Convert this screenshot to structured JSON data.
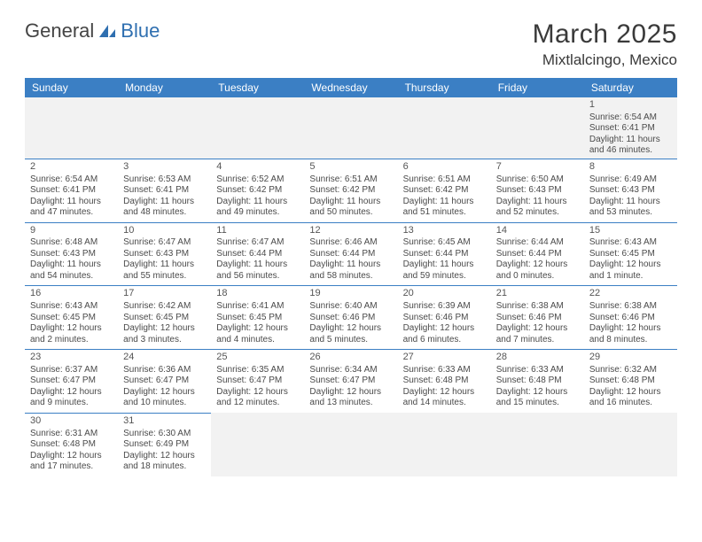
{
  "logo": {
    "part1": "General",
    "part2": "Blue"
  },
  "title": "March 2025",
  "subtitle": "Mixtlalcingo, Mexico",
  "colors": {
    "header_bg": "#3b7fc4",
    "header_text": "#ffffff",
    "border": "#3b7fc4",
    "text": "#4a4a4a",
    "empty_bg": "#f2f2f2"
  },
  "weekdays": [
    "Sunday",
    "Monday",
    "Tuesday",
    "Wednesday",
    "Thursday",
    "Friday",
    "Saturday"
  ],
  "weeks": [
    [
      null,
      null,
      null,
      null,
      null,
      null,
      {
        "d": "1",
        "sr": "Sunrise: 6:54 AM",
        "ss": "Sunset: 6:41 PM",
        "dl1": "Daylight: 11 hours",
        "dl2": "and 46 minutes."
      }
    ],
    [
      {
        "d": "2",
        "sr": "Sunrise: 6:54 AM",
        "ss": "Sunset: 6:41 PM",
        "dl1": "Daylight: 11 hours",
        "dl2": "and 47 minutes."
      },
      {
        "d": "3",
        "sr": "Sunrise: 6:53 AM",
        "ss": "Sunset: 6:41 PM",
        "dl1": "Daylight: 11 hours",
        "dl2": "and 48 minutes."
      },
      {
        "d": "4",
        "sr": "Sunrise: 6:52 AM",
        "ss": "Sunset: 6:42 PM",
        "dl1": "Daylight: 11 hours",
        "dl2": "and 49 minutes."
      },
      {
        "d": "5",
        "sr": "Sunrise: 6:51 AM",
        "ss": "Sunset: 6:42 PM",
        "dl1": "Daylight: 11 hours",
        "dl2": "and 50 minutes."
      },
      {
        "d": "6",
        "sr": "Sunrise: 6:51 AM",
        "ss": "Sunset: 6:42 PM",
        "dl1": "Daylight: 11 hours",
        "dl2": "and 51 minutes."
      },
      {
        "d": "7",
        "sr": "Sunrise: 6:50 AM",
        "ss": "Sunset: 6:43 PM",
        "dl1": "Daylight: 11 hours",
        "dl2": "and 52 minutes."
      },
      {
        "d": "8",
        "sr": "Sunrise: 6:49 AM",
        "ss": "Sunset: 6:43 PM",
        "dl1": "Daylight: 11 hours",
        "dl2": "and 53 minutes."
      }
    ],
    [
      {
        "d": "9",
        "sr": "Sunrise: 6:48 AM",
        "ss": "Sunset: 6:43 PM",
        "dl1": "Daylight: 11 hours",
        "dl2": "and 54 minutes."
      },
      {
        "d": "10",
        "sr": "Sunrise: 6:47 AM",
        "ss": "Sunset: 6:43 PM",
        "dl1": "Daylight: 11 hours",
        "dl2": "and 55 minutes."
      },
      {
        "d": "11",
        "sr": "Sunrise: 6:47 AM",
        "ss": "Sunset: 6:44 PM",
        "dl1": "Daylight: 11 hours",
        "dl2": "and 56 minutes."
      },
      {
        "d": "12",
        "sr": "Sunrise: 6:46 AM",
        "ss": "Sunset: 6:44 PM",
        "dl1": "Daylight: 11 hours",
        "dl2": "and 58 minutes."
      },
      {
        "d": "13",
        "sr": "Sunrise: 6:45 AM",
        "ss": "Sunset: 6:44 PM",
        "dl1": "Daylight: 11 hours",
        "dl2": "and 59 minutes."
      },
      {
        "d": "14",
        "sr": "Sunrise: 6:44 AM",
        "ss": "Sunset: 6:44 PM",
        "dl1": "Daylight: 12 hours",
        "dl2": "and 0 minutes."
      },
      {
        "d": "15",
        "sr": "Sunrise: 6:43 AM",
        "ss": "Sunset: 6:45 PM",
        "dl1": "Daylight: 12 hours",
        "dl2": "and 1 minute."
      }
    ],
    [
      {
        "d": "16",
        "sr": "Sunrise: 6:43 AM",
        "ss": "Sunset: 6:45 PM",
        "dl1": "Daylight: 12 hours",
        "dl2": "and 2 minutes."
      },
      {
        "d": "17",
        "sr": "Sunrise: 6:42 AM",
        "ss": "Sunset: 6:45 PM",
        "dl1": "Daylight: 12 hours",
        "dl2": "and 3 minutes."
      },
      {
        "d": "18",
        "sr": "Sunrise: 6:41 AM",
        "ss": "Sunset: 6:45 PM",
        "dl1": "Daylight: 12 hours",
        "dl2": "and 4 minutes."
      },
      {
        "d": "19",
        "sr": "Sunrise: 6:40 AM",
        "ss": "Sunset: 6:46 PM",
        "dl1": "Daylight: 12 hours",
        "dl2": "and 5 minutes."
      },
      {
        "d": "20",
        "sr": "Sunrise: 6:39 AM",
        "ss": "Sunset: 6:46 PM",
        "dl1": "Daylight: 12 hours",
        "dl2": "and 6 minutes."
      },
      {
        "d": "21",
        "sr": "Sunrise: 6:38 AM",
        "ss": "Sunset: 6:46 PM",
        "dl1": "Daylight: 12 hours",
        "dl2": "and 7 minutes."
      },
      {
        "d": "22",
        "sr": "Sunrise: 6:38 AM",
        "ss": "Sunset: 6:46 PM",
        "dl1": "Daylight: 12 hours",
        "dl2": "and 8 minutes."
      }
    ],
    [
      {
        "d": "23",
        "sr": "Sunrise: 6:37 AM",
        "ss": "Sunset: 6:47 PM",
        "dl1": "Daylight: 12 hours",
        "dl2": "and 9 minutes."
      },
      {
        "d": "24",
        "sr": "Sunrise: 6:36 AM",
        "ss": "Sunset: 6:47 PM",
        "dl1": "Daylight: 12 hours",
        "dl2": "and 10 minutes."
      },
      {
        "d": "25",
        "sr": "Sunrise: 6:35 AM",
        "ss": "Sunset: 6:47 PM",
        "dl1": "Daylight: 12 hours",
        "dl2": "and 12 minutes."
      },
      {
        "d": "26",
        "sr": "Sunrise: 6:34 AM",
        "ss": "Sunset: 6:47 PM",
        "dl1": "Daylight: 12 hours",
        "dl2": "and 13 minutes."
      },
      {
        "d": "27",
        "sr": "Sunrise: 6:33 AM",
        "ss": "Sunset: 6:48 PM",
        "dl1": "Daylight: 12 hours",
        "dl2": "and 14 minutes."
      },
      {
        "d": "28",
        "sr": "Sunrise: 6:33 AM",
        "ss": "Sunset: 6:48 PM",
        "dl1": "Daylight: 12 hours",
        "dl2": "and 15 minutes."
      },
      {
        "d": "29",
        "sr": "Sunrise: 6:32 AM",
        "ss": "Sunset: 6:48 PM",
        "dl1": "Daylight: 12 hours",
        "dl2": "and 16 minutes."
      }
    ],
    [
      {
        "d": "30",
        "sr": "Sunrise: 6:31 AM",
        "ss": "Sunset: 6:48 PM",
        "dl1": "Daylight: 12 hours",
        "dl2": "and 17 minutes."
      },
      {
        "d": "31",
        "sr": "Sunrise: 6:30 AM",
        "ss": "Sunset: 6:49 PM",
        "dl1": "Daylight: 12 hours",
        "dl2": "and 18 minutes."
      },
      null,
      null,
      null,
      null,
      null
    ]
  ]
}
